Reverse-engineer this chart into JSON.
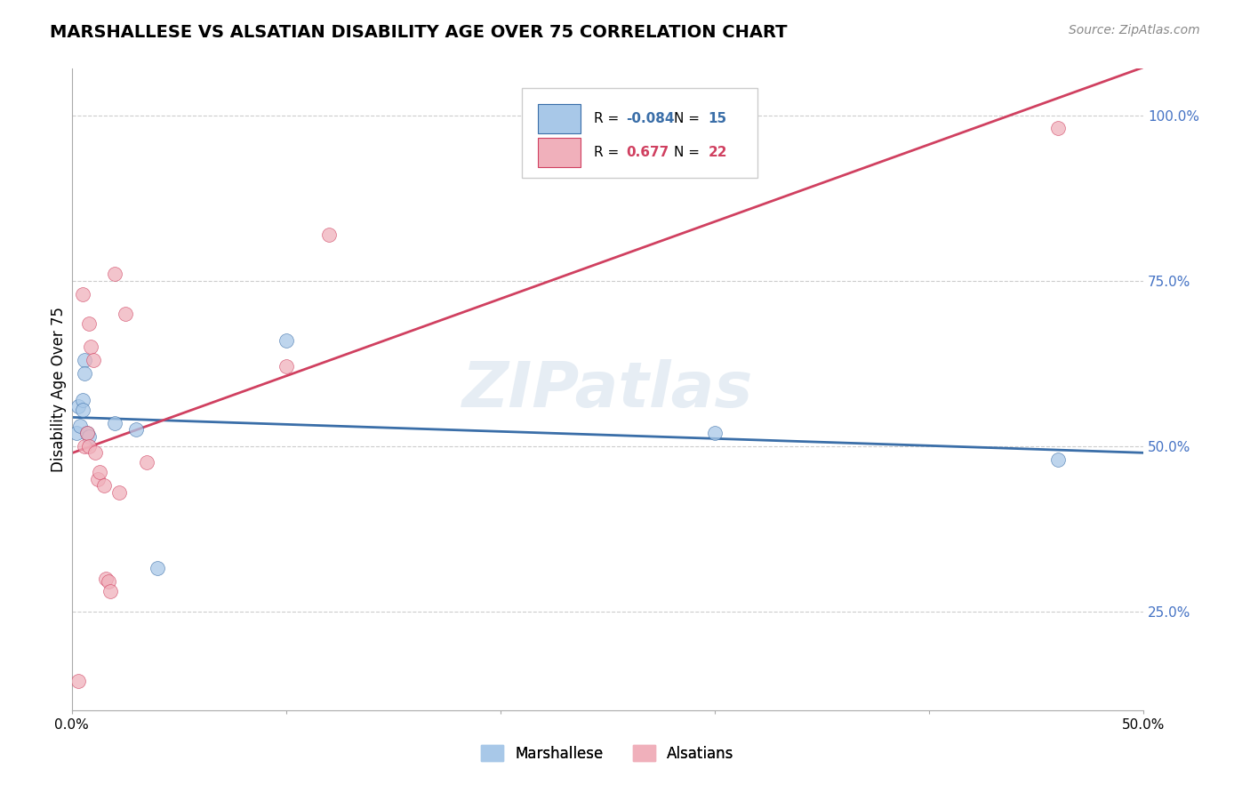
{
  "title": "MARSHALLESE VS ALSATIAN DISABILITY AGE OVER 75 CORRELATION CHART",
  "source_text": "Source: ZipAtlas.com",
  "ylabel": "Disability Age Over 75",
  "xlim": [
    0.0,
    0.5
  ],
  "ylim": [
    0.1,
    1.07
  ],
  "xticks": [
    0.0,
    0.1,
    0.2,
    0.3,
    0.4,
    0.5
  ],
  "xtick_labels": [
    "0.0%",
    "",
    "",
    "",
    "",
    "50.0%"
  ],
  "ytick_labels_right": [
    "25.0%",
    "50.0%",
    "75.0%",
    "100.0%"
  ],
  "ytick_vals_right": [
    0.25,
    0.5,
    0.75,
    1.0
  ],
  "blue_R": "-0.084",
  "blue_N": "15",
  "pink_R": "0.677",
  "pink_N": "22",
  "blue_color": "#a8c8e8",
  "blue_line_color": "#3a6ea8",
  "pink_color": "#f0b0bb",
  "pink_line_color": "#d04060",
  "marker_size": 130,
  "marker_edge_width": 0.5,
  "blue_points_x": [
    0.002,
    0.003,
    0.004,
    0.005,
    0.005,
    0.006,
    0.006,
    0.007,
    0.008,
    0.02,
    0.03,
    0.04,
    0.1,
    0.3,
    0.46
  ],
  "blue_points_y": [
    0.52,
    0.56,
    0.53,
    0.57,
    0.555,
    0.63,
    0.61,
    0.52,
    0.515,
    0.535,
    0.525,
    0.315,
    0.66,
    0.52,
    0.48
  ],
  "pink_points_x": [
    0.003,
    0.005,
    0.006,
    0.007,
    0.008,
    0.008,
    0.009,
    0.01,
    0.011,
    0.012,
    0.013,
    0.015,
    0.016,
    0.017,
    0.018,
    0.02,
    0.022,
    0.025,
    0.035,
    0.1,
    0.12,
    0.46
  ],
  "pink_points_y": [
    0.145,
    0.73,
    0.5,
    0.52,
    0.5,
    0.685,
    0.65,
    0.63,
    0.49,
    0.45,
    0.46,
    0.44,
    0.3,
    0.295,
    0.28,
    0.76,
    0.43,
    0.7,
    0.475,
    0.62,
    0.82,
    0.98
  ],
  "legend_labels": [
    "Marshallese",
    "Alsatians"
  ],
  "watermark": "ZIPatlas",
  "background_color": "#ffffff",
  "grid_color": "#cccccc",
  "title_fontsize": 14,
  "axis_label_fontsize": 12,
  "tick_fontsize": 11,
  "source_fontsize": 10
}
